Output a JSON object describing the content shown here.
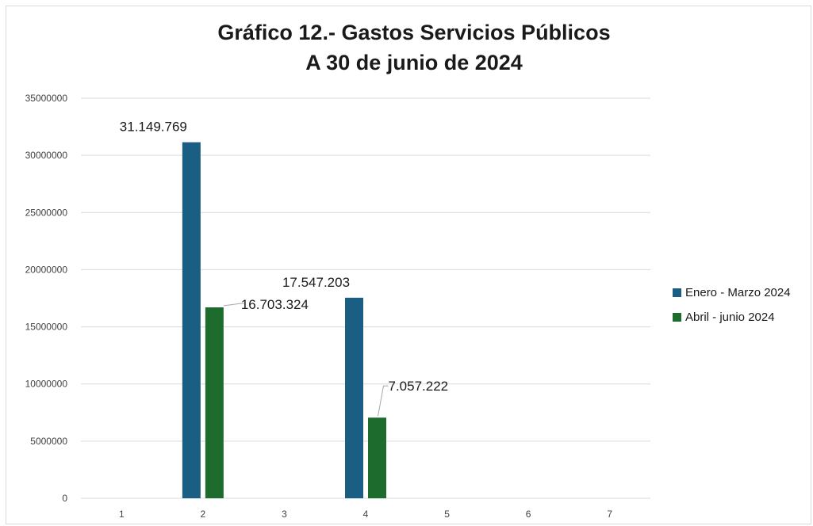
{
  "chart_data": {
    "type": "bar",
    "title_lines": [
      "Gráfico 12.- Gastos Servicios Públicos",
      "A 30 de junio de 2024"
    ],
    "categories": [
      "1",
      "2",
      "3",
      "4",
      "5",
      "6",
      "7"
    ],
    "series": [
      {
        "name": "Enero - Marzo 2024",
        "color": "#1b5e83",
        "values": [
          null,
          31149769,
          null,
          17547203,
          null,
          null,
          null
        ],
        "data_labels": [
          null,
          "31.149.769",
          null,
          "17.547.203",
          null,
          null,
          null
        ]
      },
      {
        "name": "Abril - junio 2024",
        "color": "#1e6b2e",
        "values": [
          null,
          16703324,
          null,
          7057222,
          null,
          null,
          null
        ],
        "data_labels": [
          null,
          "16.703.324",
          null,
          "7.057.222",
          null,
          null,
          null
        ]
      }
    ],
    "ylim": [
      0,
      35000000
    ],
    "y_ticks": [
      "0",
      "5000000",
      "10000000",
      "15000000",
      "20000000",
      "25000000",
      "30000000",
      "35000000"
    ],
    "grid": true,
    "legend_position": "right"
  }
}
